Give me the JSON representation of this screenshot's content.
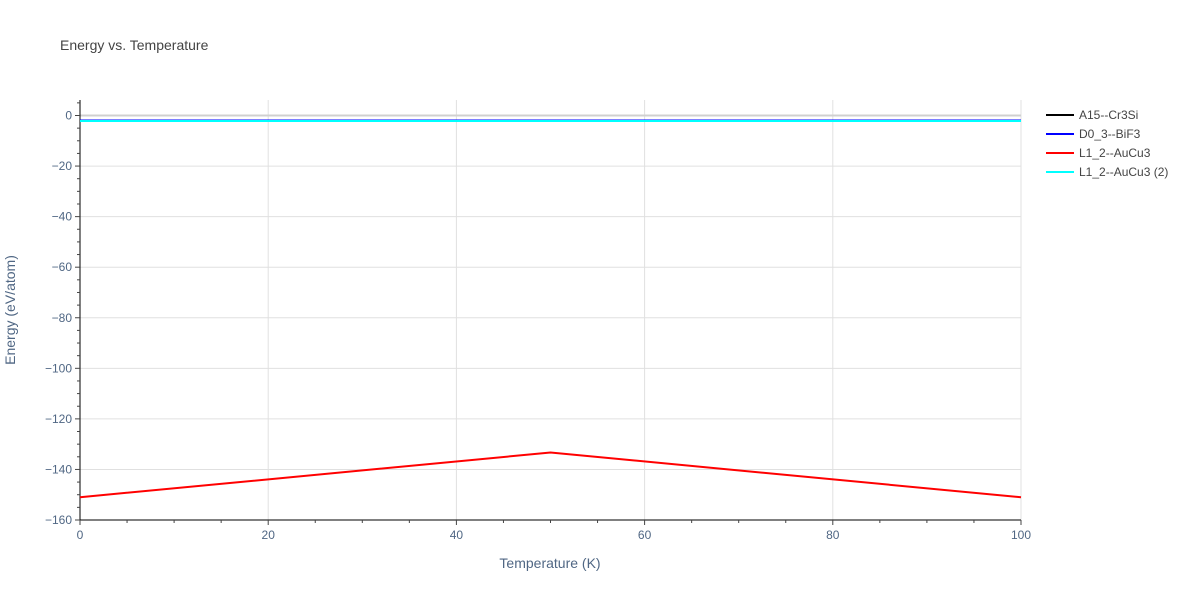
{
  "chart_data": {
    "type": "line",
    "title": "Energy vs. Temperature",
    "xlabel": "Temperature (K)",
    "ylabel": "Energy (eV/atom)",
    "xlim": [
      0,
      100
    ],
    "ylim": [
      -160,
      6
    ],
    "xticks": [
      0,
      20,
      40,
      60,
      80,
      100
    ],
    "yticks": [
      0,
      -20,
      -40,
      -60,
      -80,
      -100,
      -120,
      -140,
      -160
    ],
    "grid": true,
    "legend_position": "right",
    "series": [
      {
        "name": "A15--Cr3Si",
        "color": "#000000",
        "x": [
          0,
          50,
          100
        ],
        "y": [
          -2,
          -2,
          -2
        ]
      },
      {
        "name": "D0_3--BiF3",
        "color": "#0000ff",
        "x": [
          0,
          50,
          100
        ],
        "y": [
          -2,
          -2,
          -2
        ]
      },
      {
        "name": "L1_2--AuCu3",
        "color": "#ff0000",
        "x": [
          0,
          50,
          100
        ],
        "y": [
          -151,
          -133.3,
          -151
        ]
      },
      {
        "name": "L1_2--AuCu3 (2)",
        "color": "#00ffff",
        "x": [
          0,
          50,
          100
        ],
        "y": [
          -2.2,
          -2.2,
          -2.2
        ]
      }
    ]
  }
}
